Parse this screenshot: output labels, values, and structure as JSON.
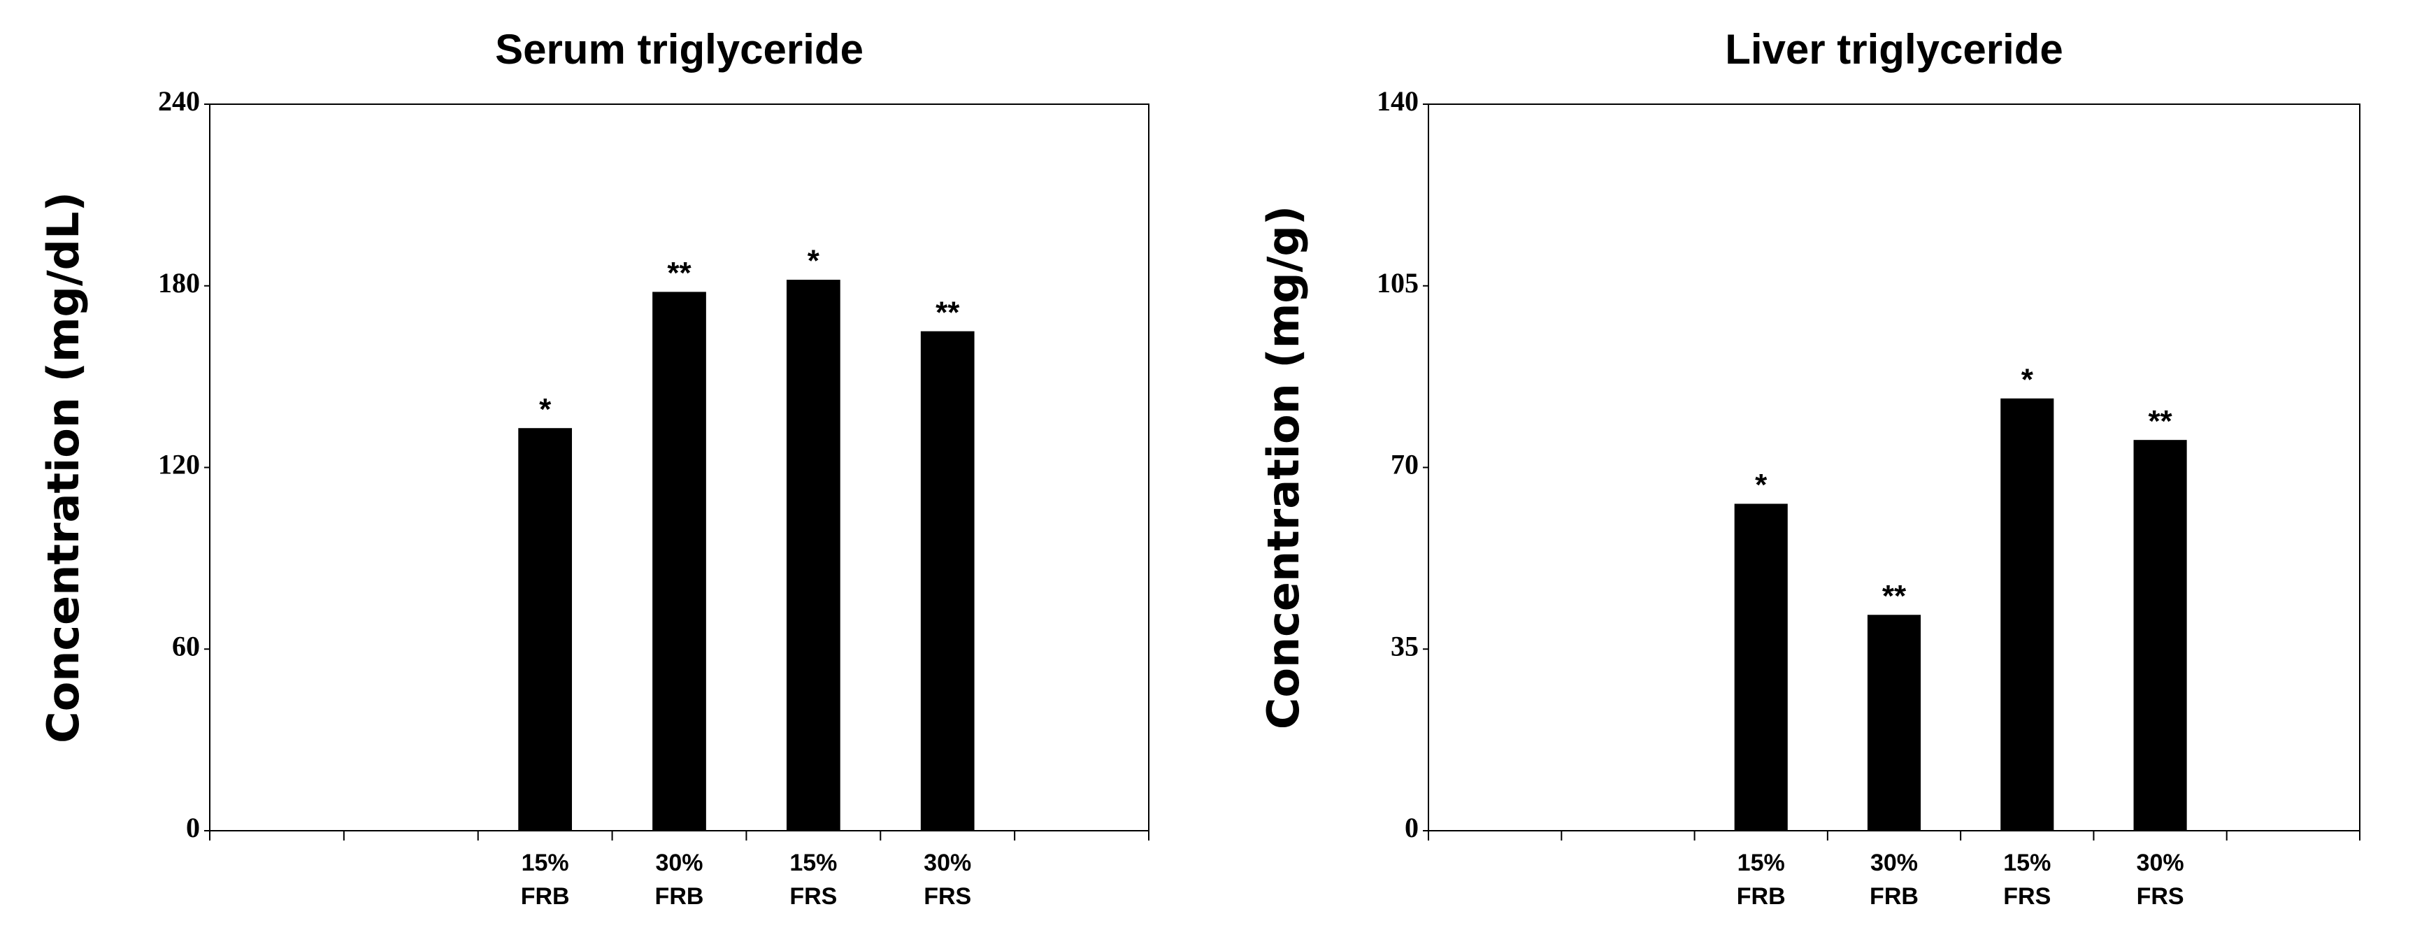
{
  "chart_data": [
    {
      "type": "bar",
      "title": "Serum triglyceride",
      "y_label": "Concentration (mg/dL)",
      "categories": [
        null,
        null,
        "15%\nFRB",
        "30%\nFRB",
        "15%\nFRS",
        "30%\nFRS",
        null
      ],
      "values": [
        null,
        null,
        133,
        178,
        182,
        165,
        null
      ],
      "annotations": [
        null,
        null,
        "*",
        "**",
        "*",
        "**",
        null
      ],
      "color": "#000000",
      "ylim": [
        0,
        240
      ],
      "yticks": [
        0,
        60,
        120,
        180,
        240
      ],
      "grid": false
    },
    {
      "type": "bar",
      "title": "Liver triglyceride",
      "y_label": "Concentration (mg/g)",
      "categories": [
        null,
        null,
        "15%\nFRB",
        "30%\nFRB",
        "15%\nFRS",
        "30%\nFRS",
        null
      ],
      "values": [
        null,
        null,
        63,
        41.6,
        83.3,
        75.3,
        null
      ],
      "annotations": [
        null,
        null,
        "*",
        "**",
        "*",
        "**",
        null
      ],
      "color": "#000000",
      "ylim": [
        0,
        140
      ],
      "yticks": [
        0,
        35,
        70,
        105,
        140
      ],
      "grid": false
    }
  ]
}
